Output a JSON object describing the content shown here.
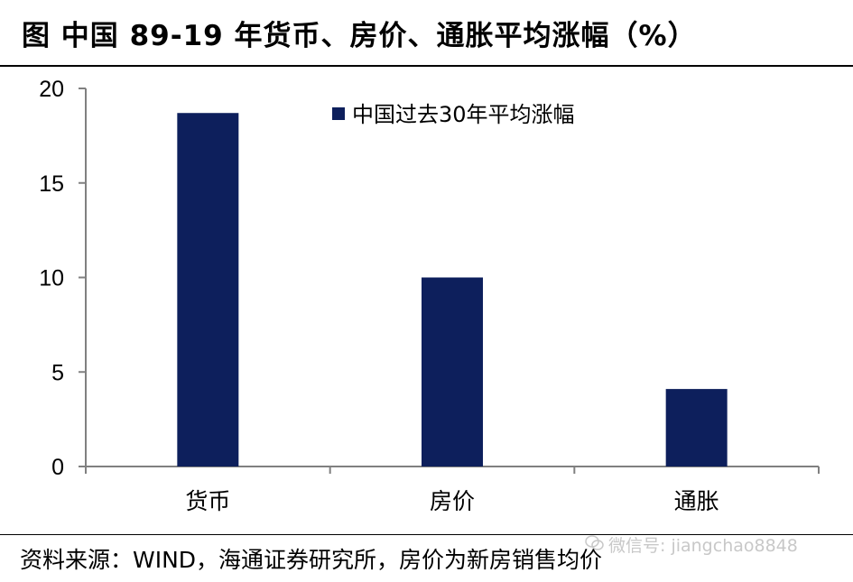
{
  "title": "图 中国 89-19 年货币、房价、通胀平均涨幅（%）",
  "source": "资料来源：WIND，海通证券研究所，房价为新房销售均价",
  "watermark": "微信号: jiangchao8848",
  "colors": {
    "bar": "#0d1f5c",
    "axis": "#808080"
  },
  "chart_data": {
    "type": "bar",
    "categories": [
      "货币",
      "房价",
      "通胀"
    ],
    "series": [
      {
        "name": "中国过去30年平均涨幅",
        "values": [
          18.7,
          10.0,
          4.1
        ]
      }
    ],
    "yticks": [
      0,
      5,
      10,
      15,
      20
    ],
    "ylim": [
      0,
      20
    ],
    "grid": false,
    "legend": "top-right"
  }
}
